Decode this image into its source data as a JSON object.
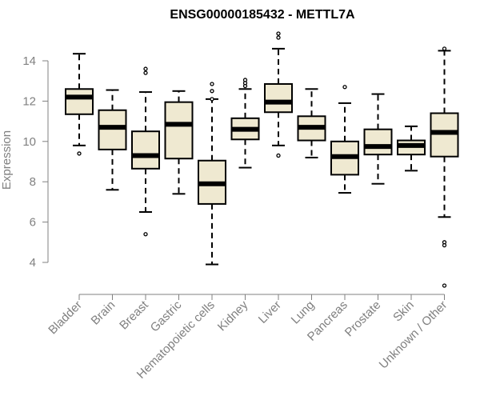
{
  "chart_data": {
    "type": "boxplot",
    "title": "ENSG00000185432 - METTL7A",
    "xlabel": "",
    "ylabel": "Expression",
    "ylim": [
      2.8,
      15.3
    ],
    "yticks": [
      4,
      6,
      8,
      10,
      12,
      14
    ],
    "ytick_labels": [
      "4",
      "6",
      "8",
      "10",
      "12",
      "14"
    ],
    "categories": [
      "Bladder",
      "Brain",
      "Breast",
      "Gastric",
      "Hematopoietic cells",
      "Kidney",
      "Liver",
      "Lung",
      "Pancreas",
      "Prostate",
      "Skin",
      "Unknown / Other"
    ],
    "boxes": [
      {
        "category": "Bladder",
        "whisker_low": 9.8,
        "q1": 11.35,
        "median": 12.2,
        "q3": 12.6,
        "whisker_high": 14.35,
        "outliers": [
          9.4
        ]
      },
      {
        "category": "Brain",
        "whisker_low": 7.6,
        "q1": 9.6,
        "median": 10.7,
        "q3": 11.55,
        "whisker_high": 12.55,
        "outliers": []
      },
      {
        "category": "Breast",
        "whisker_low": 6.5,
        "q1": 8.65,
        "median": 9.3,
        "q3": 10.5,
        "whisker_high": 12.45,
        "outliers": [
          13.4,
          13.6,
          5.4
        ]
      },
      {
        "category": "Gastric",
        "whisker_low": 7.4,
        "q1": 9.15,
        "median": 10.85,
        "q3": 11.95,
        "whisker_high": 12.5,
        "outliers": []
      },
      {
        "category": "Hematopoietic cells",
        "whisker_low": 3.9,
        "q1": 6.9,
        "median": 7.9,
        "q3": 9.05,
        "whisker_high": 12.1,
        "outliers": [
          12.1,
          12.5,
          12.85
        ]
      },
      {
        "category": "Kidney",
        "whisker_low": 8.7,
        "q1": 10.1,
        "median": 10.6,
        "q3": 11.15,
        "whisker_high": 12.6,
        "outliers": [
          12.75,
          12.9,
          13.05
        ]
      },
      {
        "category": "Liver",
        "whisker_low": 9.8,
        "q1": 11.45,
        "median": 11.95,
        "q3": 12.85,
        "whisker_high": 14.6,
        "outliers": [
          9.3,
          15.15,
          15.35
        ]
      },
      {
        "category": "Lung",
        "whisker_low": 9.2,
        "q1": 10.05,
        "median": 10.7,
        "q3": 11.25,
        "whisker_high": 12.6,
        "outliers": []
      },
      {
        "category": "Pancreas",
        "whisker_low": 7.45,
        "q1": 8.35,
        "median": 9.25,
        "q3": 10.0,
        "whisker_high": 11.9,
        "outliers": [
          12.7
        ]
      },
      {
        "category": "Prostate",
        "whisker_low": 7.9,
        "q1": 9.35,
        "median": 9.75,
        "q3": 10.6,
        "whisker_high": 12.35,
        "outliers": []
      },
      {
        "category": "Skin",
        "whisker_low": 8.55,
        "q1": 9.35,
        "median": 9.8,
        "q3": 10.05,
        "whisker_high": 10.75,
        "outliers": []
      },
      {
        "category": "Unknown / Other",
        "whisker_low": 6.25,
        "q1": 9.25,
        "median": 10.45,
        "q3": 11.4,
        "whisker_high": 14.5,
        "outliers": [
          14.6,
          5.0,
          4.85,
          2.85
        ]
      }
    ],
    "colors": {
      "box_fill": "#efe9d1",
      "box_stroke": "#000000",
      "median": "#000000",
      "axis": "#808080",
      "text": "#808080",
      "title": "#000000"
    }
  }
}
